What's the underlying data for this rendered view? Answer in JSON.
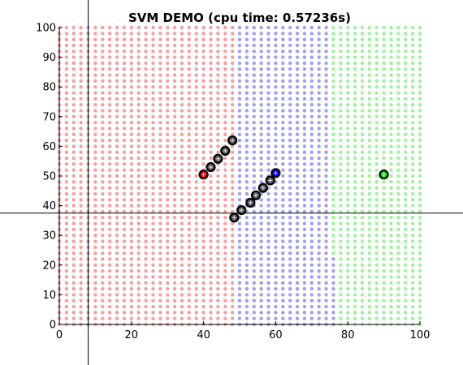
{
  "chart_data": {
    "type": "scatter",
    "title": "SVM DEMO (cpu time: 0.57236s)",
    "xlabel": "",
    "ylabel": "",
    "xlim": [
      0,
      100
    ],
    "ylim": [
      0,
      100
    ],
    "x_ticks": [
      "0",
      "20",
      "40",
      "60",
      "80",
      "100"
    ],
    "y_ticks": [
      "0",
      "10",
      "20",
      "30",
      "40",
      "50",
      "60",
      "70",
      "80",
      "90",
      "100"
    ],
    "grid": false,
    "colors": {
      "class_red_point": "#ff0000",
      "class_blue_point": "#0000ff",
      "class_green_point": "#00ee00",
      "region_red": "#f4a0a0",
      "region_blue": "#a0a0f0",
      "region_green": "#a0f0a0",
      "support_vector_fill": "#5a5a5a",
      "crosshair": "#000000"
    },
    "decision_regions": {
      "sample_spacing": 2,
      "boundary_red_blue_x": 50,
      "boundary_blue_green_x": 75.5,
      "boundary_blue_green_x_low": 76.5,
      "boundary_low_y_max": 22
    },
    "series": [
      {
        "class": "red",
        "points": [
          [
            40,
            50.5
          ],
          [
            42,
            53
          ],
          [
            44,
            55.8
          ],
          [
            46,
            58.5
          ],
          [
            48,
            62
          ]
        ]
      },
      {
        "class": "blue",
        "points": [
          [
            48.5,
            36
          ],
          [
            50.5,
            38.5
          ],
          [
            53,
            41
          ],
          [
            54.5,
            43.5
          ],
          [
            56.5,
            46
          ],
          [
            58.5,
            48.5
          ],
          [
            60,
            51
          ]
        ]
      },
      {
        "class": "green",
        "points": [
          [
            90,
            50.5
          ]
        ]
      }
    ],
    "support_vectors": [
      [
        40,
        50.5
      ],
      [
        42,
        53
      ],
      [
        44,
        55.8
      ],
      [
        46,
        58.5
      ],
      [
        48,
        62
      ],
      [
        48.5,
        36
      ],
      [
        50.5,
        38.5
      ],
      [
        53,
        41
      ],
      [
        54.5,
        43.5
      ],
      [
        56.5,
        46
      ],
      [
        58.5,
        48.5
      ],
      [
        60,
        51
      ],
      [
        90,
        50.5
      ]
    ],
    "crosshair": {
      "x": 8,
      "y": 37.5
    }
  }
}
